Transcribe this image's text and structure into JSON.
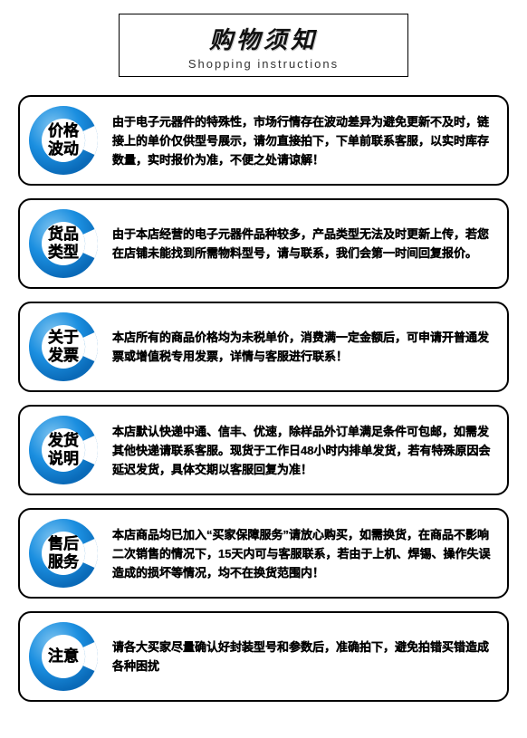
{
  "header": {
    "title_cn": "购物须知",
    "title_en": "Shopping instructions"
  },
  "style": {
    "ring_outer_color": "#0a6ab8",
    "ring_inner_color": "#1b8fe0",
    "ring_gap_color": "#ffffff",
    "ring_highlight_color": "#7fc4f0",
    "border_color": "#000000",
    "background_color": "#ffffff",
    "text_color": "#111111",
    "header_cn_fontsize": 26,
    "header_en_fontsize": 13,
    "label_fontsize": 17,
    "body_fontsize": 13,
    "body_lineheight": 21,
    "ring_size": 76
  },
  "items": [
    {
      "label_line1": "价格",
      "label_line2": "波动",
      "body": "由于电子元器件的特殊性，市场行情存在波动差异为避免更新不及时，链接上的单价仅供型号展示，请勿直接拍下，下单前联系客服，以实时库存数量，实时报价为准，不便之处请谅解！"
    },
    {
      "label_line1": "货品",
      "label_line2": "类型",
      "body": "由于本店经营的电子元器件品种较多，产品类型无法及时更新上传，若您在店铺未能找到所需物料型号，请与联系，我们会第一时间回复报价。"
    },
    {
      "label_line1": "关于",
      "label_line2": "发票",
      "body": "本店所有的商品价格均为未税单价，消费满一定金额后，可申请开普通发票或增值税专用发票，详情与客服进行联系！"
    },
    {
      "label_line1": "发货",
      "label_line2": "说明",
      "body": "本店默认快递中通、信丰、优速，除样品外订单满足条件可包邮，如需发其他快递请联系客服。现货于工作日48小时内排单发货，若有特殊原因会延迟发货，具体交期以客服回复为准！"
    },
    {
      "label_line1": "售后",
      "label_line2": "服务",
      "body": "本店商品均已加入“买家保障服务”请放心购买，如需换货，在商品不影响二次销售的情况下，15天内可与客服联系，若由于上机、焊锡、操作失误造成的损坏等情况，均不在换货范围内！"
    },
    {
      "label_line1": "注意",
      "label_line2": "",
      "body": "请各大买家尽量确认好封装型号和参数后，准确拍下，避免拍错买错造成各种困扰"
    }
  ]
}
